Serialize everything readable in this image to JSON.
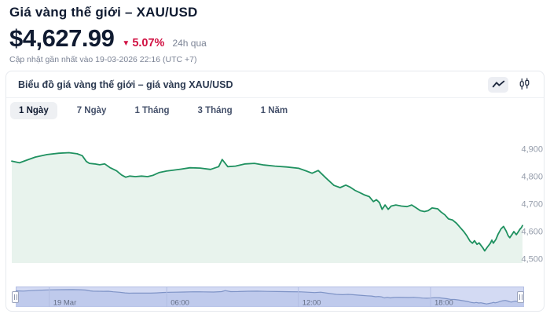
{
  "header": {
    "title": "Giá vàng thế giới – XAU/USD",
    "price": "$4,627.99",
    "change_arrow": "▼",
    "change_percent": "5.07%",
    "change_direction": "down",
    "change_period": "24h qua",
    "updated_text": "Cập nhật gần nhất vào 19-03-2026 22:16 (UTC +7)"
  },
  "card": {
    "title": "Biểu đồ giá vàng thế giới – giá vàng XAU/USD",
    "toggles": [
      {
        "icon": "line-chart-icon",
        "active": true
      },
      {
        "icon": "candlestick-icon",
        "active": false
      }
    ],
    "range_tabs": [
      {
        "label": "1 Ngày",
        "active": true
      },
      {
        "label": "7 Ngày",
        "active": false
      },
      {
        "label": "1 Tháng",
        "active": false
      },
      {
        "label": "3 Tháng",
        "active": false
      },
      {
        "label": "1 Năm",
        "active": false
      }
    ]
  },
  "colors": {
    "text_dark": "#101b31",
    "text_gray": "#7b8395",
    "accent_red": "#d11243",
    "line_green": "#1f9160",
    "fill_mint": "#e8f3ed",
    "navigator_bg": "#d3daf3",
    "navigator_fill": "#bfcaec",
    "navigator_line": "#7e93c6",
    "navigator_border": "#b3bee3"
  },
  "chart_data": {
    "type": "area",
    "title": "Giá vàng thế giới – XAU/USD (1 Ngày)",
    "xlabel": "",
    "ylabel": "",
    "grid": false,
    "legend": "none",
    "last_price": 4627.99,
    "ylim": [
      4486,
      4914
    ],
    "y_ticks": [
      {
        "label": "4,900",
        "value": 4900
      },
      {
        "label": "4,800",
        "value": 4800
      },
      {
        "label": "4,700",
        "value": 4700
      },
      {
        "label": "4,600",
        "value": 4600
      },
      {
        "label": "4,500",
        "value": 4500
      }
    ],
    "x_ticks": [
      {
        "label": "19 Mar",
        "t": 0.066
      },
      {
        "label": "06:00",
        "t": 0.297
      },
      {
        "label": "12:00",
        "t": 0.556
      },
      {
        "label": "18:00",
        "t": 0.816
      }
    ],
    "series": [
      {
        "name": "XAU/USD",
        "points": [
          [
            0.0,
            4856
          ],
          [
            0.015,
            4850
          ],
          [
            0.031,
            4861
          ],
          [
            0.046,
            4871
          ],
          [
            0.069,
            4880
          ],
          [
            0.092,
            4885
          ],
          [
            0.112,
            4887
          ],
          [
            0.128,
            4883
          ],
          [
            0.138,
            4876
          ],
          [
            0.146,
            4855
          ],
          [
            0.152,
            4848
          ],
          [
            0.162,
            4846
          ],
          [
            0.172,
            4843
          ],
          [
            0.182,
            4846
          ],
          [
            0.192,
            4833
          ],
          [
            0.205,
            4821
          ],
          [
            0.215,
            4806
          ],
          [
            0.223,
            4798
          ],
          [
            0.231,
            4802
          ],
          [
            0.242,
            4800
          ],
          [
            0.254,
            4802
          ],
          [
            0.266,
            4800
          ],
          [
            0.277,
            4805
          ],
          [
            0.289,
            4815
          ],
          [
            0.303,
            4820
          ],
          [
            0.315,
            4823
          ],
          [
            0.331,
            4827
          ],
          [
            0.349,
            4832
          ],
          [
            0.369,
            4831
          ],
          [
            0.389,
            4826
          ],
          [
            0.405,
            4836
          ],
          [
            0.412,
            4862
          ],
          [
            0.423,
            4836
          ],
          [
            0.438,
            4838
          ],
          [
            0.457,
            4846
          ],
          [
            0.475,
            4848
          ],
          [
            0.494,
            4842
          ],
          [
            0.515,
            4838
          ],
          [
            0.538,
            4835
          ],
          [
            0.562,
            4830
          ],
          [
            0.577,
            4820
          ],
          [
            0.588,
            4812
          ],
          [
            0.6,
            4822
          ],
          [
            0.615,
            4795
          ],
          [
            0.631,
            4768
          ],
          [
            0.643,
            4760
          ],
          [
            0.654,
            4769
          ],
          [
            0.663,
            4761
          ],
          [
            0.672,
            4750
          ],
          [
            0.682,
            4741
          ],
          [
            0.691,
            4733
          ],
          [
            0.7,
            4727
          ],
          [
            0.708,
            4709
          ],
          [
            0.714,
            4716
          ],
          [
            0.72,
            4705
          ],
          [
            0.725,
            4681
          ],
          [
            0.731,
            4697
          ],
          [
            0.737,
            4681
          ],
          [
            0.743,
            4693
          ],
          [
            0.752,
            4697
          ],
          [
            0.763,
            4693
          ],
          [
            0.774,
            4691
          ],
          [
            0.783,
            4697
          ],
          [
            0.792,
            4686
          ],
          [
            0.8,
            4676
          ],
          [
            0.808,
            4673
          ],
          [
            0.815,
            4676
          ],
          [
            0.823,
            4686
          ],
          [
            0.834,
            4683
          ],
          [
            0.84,
            4672
          ],
          [
            0.848,
            4661
          ],
          [
            0.855,
            4646
          ],
          [
            0.863,
            4642
          ],
          [
            0.871,
            4630
          ],
          [
            0.878,
            4615
          ],
          [
            0.885,
            4600
          ],
          [
            0.891,
            4585
          ],
          [
            0.897,
            4566
          ],
          [
            0.902,
            4558
          ],
          [
            0.906,
            4567
          ],
          [
            0.911,
            4554
          ],
          [
            0.915,
            4559
          ],
          [
            0.922,
            4542
          ],
          [
            0.926,
            4530
          ],
          [
            0.931,
            4543
          ],
          [
            0.937,
            4558
          ],
          [
            0.94,
            4569
          ],
          [
            0.943,
            4558
          ],
          [
            0.948,
            4572
          ],
          [
            0.952,
            4590
          ],
          [
            0.958,
            4610
          ],
          [
            0.963,
            4619
          ],
          [
            0.968,
            4602
          ],
          [
            0.972,
            4585
          ],
          [
            0.975,
            4578
          ],
          [
            0.98,
            4591
          ],
          [
            0.983,
            4600
          ],
          [
            0.988,
            4589
          ],
          [
            0.991,
            4597
          ],
          [
            0.995,
            4609
          ],
          [
            0.998,
            4615
          ],
          [
            1.0,
            4622
          ]
        ]
      }
    ],
    "navigator": {
      "bg": "#d3daf3",
      "fill": "#bfcaec",
      "line": "#7e93c6",
      "border": "#b3bee3",
      "label_color": "#636d85"
    }
  }
}
